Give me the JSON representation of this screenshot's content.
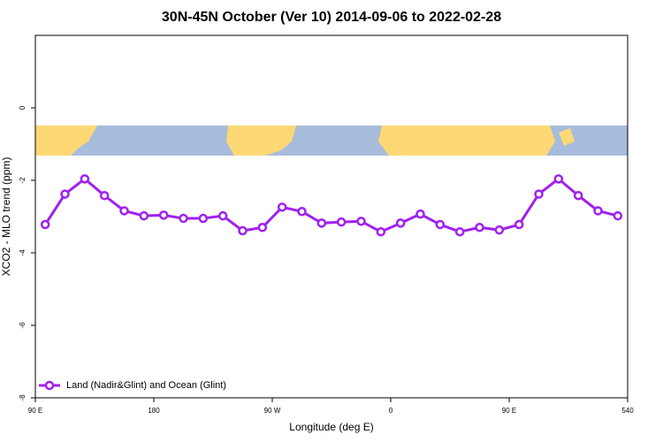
{
  "chart_data": {
    "type": "line",
    "title": "30N-45N October (Ver 10)   2014-09-06 to 2022-02-28",
    "xlabel": "Longitude (deg E)",
    "ylabel": "XCO2 - MLO trend (ppm)",
    "x": [
      97.5,
      112.5,
      127.5,
      142.5,
      157.5,
      172.5,
      187.5,
      202.5,
      217.5,
      232.5,
      247.5,
      262.5,
      277.5,
      292.5,
      307.5,
      322.5,
      337.5,
      352.5,
      367.5,
      382.5,
      397.5,
      412.5,
      427.5,
      442.5,
      457.5,
      472.5,
      487.5,
      502.5,
      517.5,
      532.5
    ],
    "series": [
      {
        "name": "Land (Nadir&Glint) and Ocean (Glint)",
        "color": "#a020f0",
        "values": [
          -3.22,
          -2.38,
          -1.96,
          -2.42,
          -2.84,
          -2.98,
          -2.96,
          -3.05,
          -3.05,
          -2.98,
          -3.39,
          -3.3,
          -2.74,
          -2.86,
          -3.18,
          -3.15,
          -3.13,
          -3.42,
          -3.18,
          -2.93,
          -3.22,
          -3.42,
          -3.3,
          -3.37,
          -3.22,
          -2.38,
          -1.96,
          -2.42,
          -2.84,
          -2.98
        ]
      }
    ],
    "xlim": [
      90,
      540
    ],
    "xticks": [
      {
        "value": 90,
        "label": "90 E"
      },
      180,
      {
        "value": 270,
        "label": "90 W"
      },
      {
        "value": 360,
        "label": "0"
      },
      {
        "value": 450,
        "label": "90 E"
      },
      540
    ],
    "ylim": [
      -8,
      2
    ],
    "yticks": [
      -8,
      -6,
      -4,
      -2,
      0
    ],
    "grid": false,
    "legend": "bottom left"
  }
}
